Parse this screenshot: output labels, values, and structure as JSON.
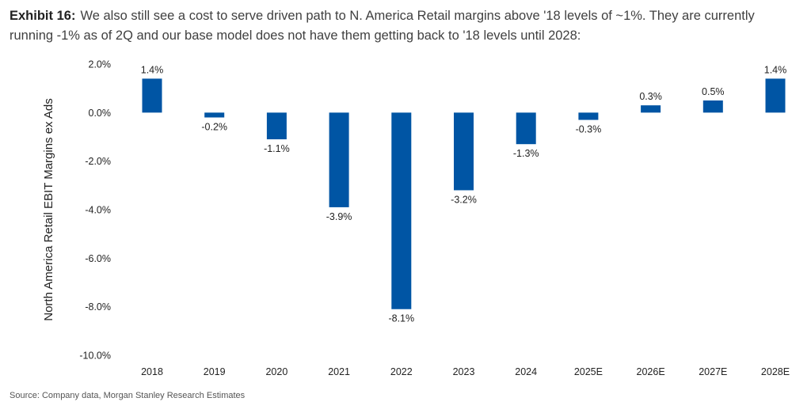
{
  "exhibit": {
    "label": "Exhibit 16:",
    "text": "We also still see a cost to serve driven path to N. America Retail margins above '18 levels of ~1%. They are currently running -1% as of 2Q and our base model does not have them getting back to '18 levels until 2028:"
  },
  "source": "Source: Company data, Morgan Stanley Research Estimates",
  "chart_data": {
    "type": "bar",
    "categories": [
      "2018",
      "2019",
      "2020",
      "2021",
      "2022",
      "2023",
      "2024",
      "2025E",
      "2026E",
      "2027E",
      "2028E"
    ],
    "values": [
      1.4,
      -0.2,
      -1.1,
      -3.9,
      -8.1,
      -3.2,
      -1.3,
      -0.3,
      0.3,
      0.5,
      1.4
    ],
    "data_labels": [
      "1.4%",
      "-0.2%",
      "-1.1%",
      "-3.9%",
      "-8.1%",
      "-3.2%",
      "-1.3%",
      "-0.3%",
      "0.3%",
      "0.5%",
      "1.4%"
    ],
    "ylabel": "North America Retail EBIT Margins ex Ads",
    "ylim": [
      -10,
      2
    ],
    "y_ticks": [
      2,
      0,
      -2,
      -4,
      -6,
      -8,
      -10
    ],
    "y_tick_labels": [
      "2.0%",
      "0.0%",
      "-2.0%",
      "-4.0%",
      "-6.0%",
      "-8.0%",
      "-10.0%"
    ],
    "bar_color": "#0055A4",
    "grid": false,
    "legend": "none"
  }
}
